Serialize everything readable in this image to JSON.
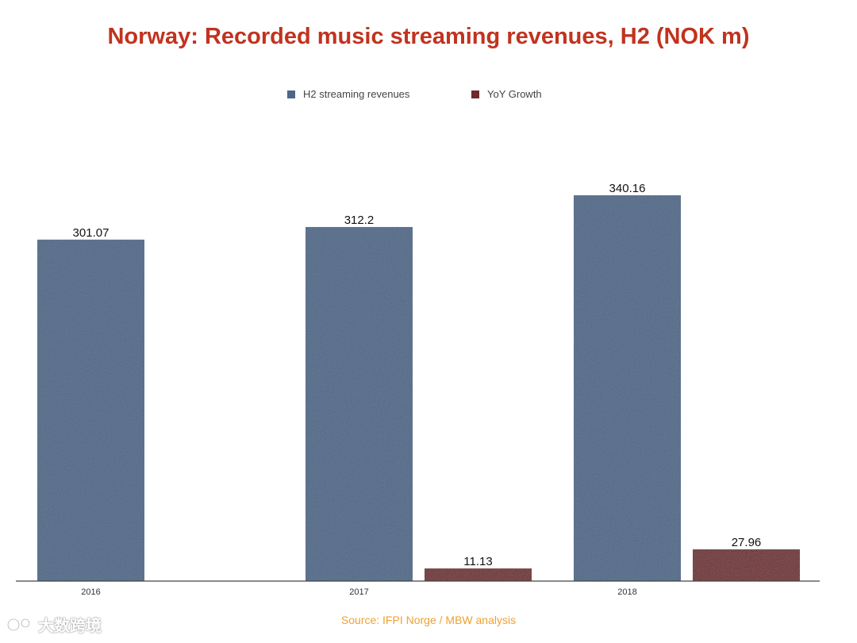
{
  "chart_data": {
    "type": "bar",
    "title": "Norway: Recorded music streaming revenues, H2 (NOK m)",
    "categories": [
      "2016",
      "2017",
      "2018"
    ],
    "series": [
      {
        "name": "H2 streaming revenues",
        "values": [
          301.07,
          312.2,
          340.16
        ],
        "labels": [
          "301.07",
          "312.2",
          "340.16"
        ],
        "color": "#4d6788"
      },
      {
        "name": "YoY Growth",
        "values": [
          null,
          11.13,
          27.96
        ],
        "labels": [
          "",
          "11.13",
          "27.96"
        ],
        "color": "#6e2b2d"
      }
    ],
    "ylim": [
      0,
      340.16
    ],
    "grid": false,
    "legend_position": "top-center",
    "source": "Source: IFPI Norge / MBW analysis"
  },
  "colors": {
    "title": "#c1331f",
    "source": "#f0a030",
    "axis": "#444444"
  },
  "watermark": {
    "text": "大数跨境"
  }
}
